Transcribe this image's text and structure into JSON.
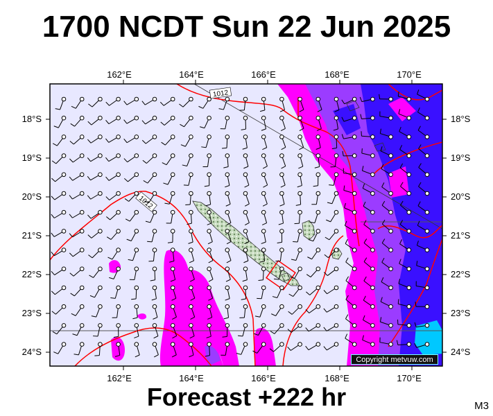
{
  "header": {
    "title": "1700 NCDT Sun 22 Jun 2025"
  },
  "footer": {
    "forecast": "Forecast +222 hr",
    "model": "M3",
    "copyright": "Copyright metvuw.com"
  },
  "map": {
    "lon_labels": [
      "162°E",
      "164°E",
      "166°E",
      "168°E",
      "170°E"
    ],
    "lat_labels": [
      "18°S",
      "19°S",
      "20°S",
      "21°S",
      "22°S",
      "23°S",
      "24°S"
    ],
    "isobar_labels": [
      "1012",
      "1012"
    ],
    "colors": {
      "background": "#e8e8ff",
      "rain_light": "#ff00ff",
      "rain_medium": "#9b3cff",
      "rain_heavy": "#3a10ff",
      "rain_extreme": "#00c8ff",
      "isobar_red": "#ff0000",
      "land": "#c8dcc0"
    }
  }
}
